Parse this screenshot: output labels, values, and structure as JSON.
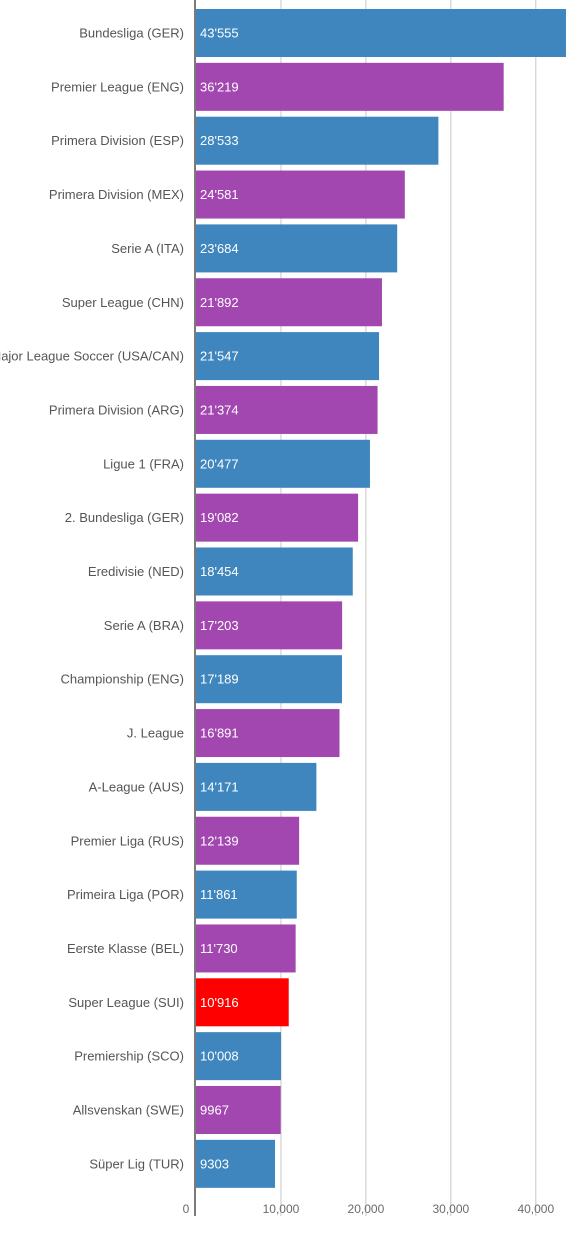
{
  "chart_data": {
    "type": "bar",
    "orientation": "horizontal",
    "categories": [
      "Bundesliga (GER)",
      "Premier League (ENG)",
      "Primera Division (ESP)",
      "Primera Division (MEX)",
      "Serie A (ITA)",
      "Super League (CHN)",
      "Major League Soccer (USA/CAN)",
      "Primera Division (ARG)",
      "Ligue 1 (FRA)",
      "2. Bundesliga (GER)",
      "Eredivisie (NED)",
      "Serie A (BRA)",
      "Championship (ENG)",
      "J. League",
      "A-League (AUS)",
      "Premier Liga (RUS)",
      "Primeira Liga (POR)",
      "Eerste Klasse (BEL)",
      "Super League (SUI)",
      "Premiership (SCO)",
      "Allsvenskan (SWE)",
      "Süper Lig (TUR)"
    ],
    "values": [
      43555,
      36219,
      28533,
      24581,
      23684,
      21892,
      21547,
      21374,
      20477,
      19082,
      18454,
      17203,
      17189,
      16891,
      14171,
      12139,
      11861,
      11730,
      10916,
      10008,
      9967,
      9303
    ],
    "value_labels": [
      "43'555",
      "36'219",
      "28'533",
      "24'581",
      "23'684",
      "21'892",
      "21'547",
      "21'374",
      "20'477",
      "19'082",
      "18'454",
      "17'203",
      "17'189",
      "16'891",
      "14'171",
      "12'139",
      "11'861",
      "11'730",
      "10'916",
      "10'008",
      "9967",
      "9303"
    ],
    "bar_colors": [
      "#3e86bd",
      "#a347b0",
      "#3e86bd",
      "#a347b0",
      "#3e86bd",
      "#a347b0",
      "#3e86bd",
      "#a347b0",
      "#3e86bd",
      "#a347b0",
      "#3e86bd",
      "#a347b0",
      "#3e86bd",
      "#a347b0",
      "#3e86bd",
      "#a347b0",
      "#3e86bd",
      "#a347b0",
      "#ff0000",
      "#3e86bd",
      "#a347b0",
      "#3e86bd"
    ],
    "highlight_category": "Super League (SUI)",
    "x_ticks": [
      0,
      10000,
      20000,
      30000,
      40000
    ],
    "x_tick_labels": [
      "0",
      "10,000",
      "20,000",
      "30,000",
      "40,000"
    ],
    "xlim": [
      0,
      43555
    ],
    "grid": true,
    "title": "",
    "xlabel": "",
    "ylabel": ""
  }
}
